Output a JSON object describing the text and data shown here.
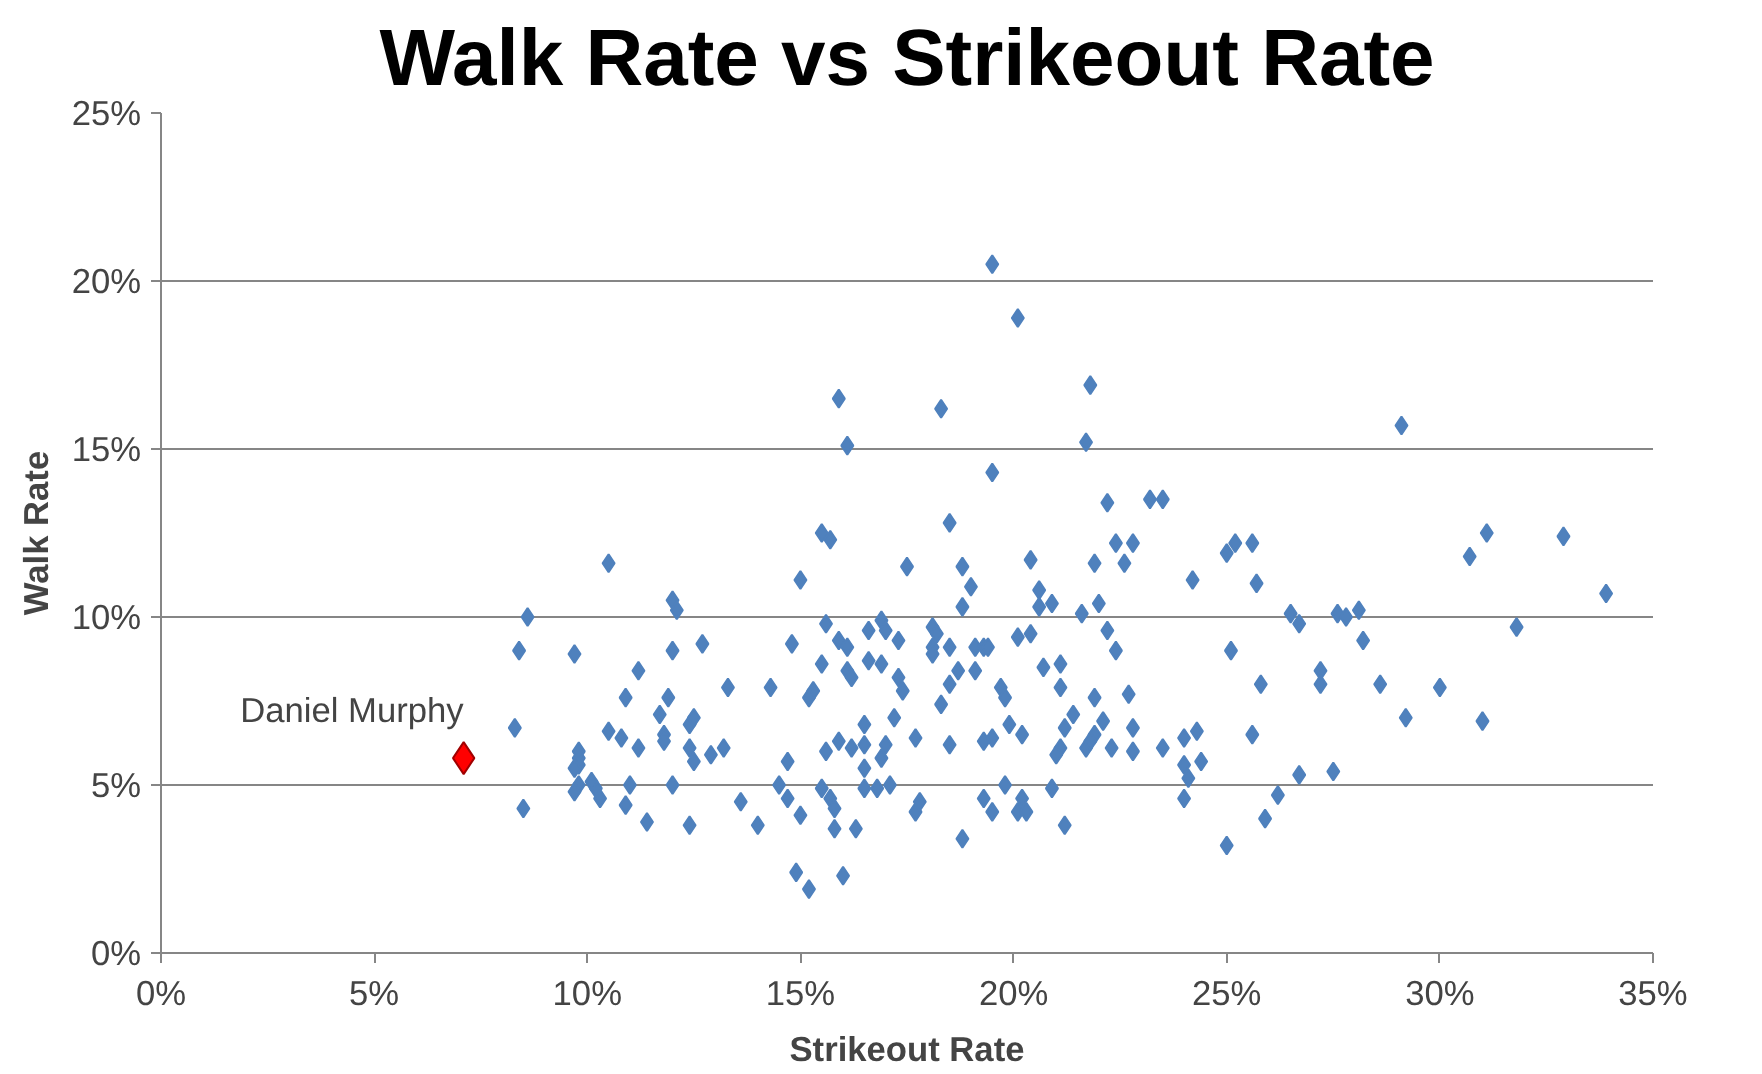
{
  "chart_data": {
    "type": "scatter",
    "title": "Walk Rate vs Strikeout Rate",
    "xlabel": "Strikeout Rate",
    "ylabel": "Walk Rate",
    "xlim": [
      0,
      35
    ],
    "ylim": [
      0,
      25
    ],
    "xticks": [
      {
        "value": 0,
        "label": "0%"
      },
      {
        "value": 5,
        "label": "5%"
      },
      {
        "value": 10,
        "label": "10%"
      },
      {
        "value": 15,
        "label": "15%"
      },
      {
        "value": 20,
        "label": "20%"
      },
      {
        "value": 25,
        "label": "25%"
      },
      {
        "value": 30,
        "label": "30%"
      },
      {
        "value": 35,
        "label": "35%"
      }
    ],
    "yticks": [
      {
        "value": 0,
        "label": "0%"
      },
      {
        "value": 5,
        "label": "5%"
      },
      {
        "value": 10,
        "label": "10%"
      },
      {
        "value": 15,
        "label": "15%"
      },
      {
        "value": 20,
        "label": "20%"
      },
      {
        "value": 25,
        "label": "25%"
      }
    ],
    "grid": "y",
    "legend": false,
    "marker": "diamond",
    "series": [
      {
        "color": "#4f81bd",
        "x": [
          8.3,
          8.4,
          8.6,
          8.5,
          9.7,
          9.8,
          9.8,
          9.8,
          10.5,
          10.2,
          15.9,
          16.1,
          15.5,
          15.7,
          15.0,
          12.0,
          12.1,
          12.0,
          12.7,
          11.2,
          10.9,
          11.9,
          13.3,
          14.3,
          14.8,
          15.6,
          15.5,
          15.9,
          16.1,
          16.1,
          16.2,
          15.3,
          15.2,
          10.5,
          10.8,
          11.7,
          11.8,
          12.4,
          12.5,
          9.8,
          9.7,
          11.2,
          11.8,
          12.4,
          12.5,
          12.9,
          13.2,
          14.7,
          10.1,
          9.7,
          10.3,
          11.0,
          10.9,
          12.0,
          11.4,
          12.4,
          13.6,
          14.0,
          14.5,
          14.7,
          15.0,
          15.5,
          15.7,
          15.8,
          15.8,
          16.3,
          14.9,
          15.2,
          16.0,
          15.6,
          15.9,
          16.2,
          19.5,
          20.1,
          18.3,
          21.8,
          21.7,
          19.5,
          18.5,
          22.2,
          23.2,
          23.5,
          22.4,
          22.8,
          22.6,
          21.9,
          20.4,
          17.5,
          18.8,
          19.0,
          20.6,
          20.6,
          20.9,
          22.0,
          18.8,
          21.6,
          24.2,
          18.1,
          18.2,
          18.5,
          18.1,
          18.1,
          19.1,
          19.3,
          19.4,
          20.1,
          20.4,
          22.2,
          22.4,
          16.6,
          16.9,
          17.0,
          17.3,
          16.6,
          16.9,
          18.7,
          18.5,
          19.1,
          17.3,
          17.4,
          19.7,
          19.8,
          20.7,
          21.1,
          21.1,
          21.9,
          22.7,
          18.3,
          17.2,
          17.7,
          16.5,
          19.9,
          20.2,
          21.4,
          21.2,
          21.1,
          21.0,
          22.1,
          21.9,
          22.8,
          22.8,
          22.3,
          21.7,
          21.8,
          19.5,
          19.3,
          18.5,
          17.0,
          16.9,
          16.5,
          16.5,
          23.5,
          24.0,
          24.3,
          24.0,
          24.1,
          24.4,
          24.0,
          16.5,
          16.8,
          17.1,
          17.7,
          17.8,
          19.3,
          19.5,
          19.8,
          20.1,
          20.3,
          20.2,
          20.9,
          21.2,
          18.8,
          29.1,
          25.0,
          25.2,
          25.6,
          25.7,
          30.7,
          31.1,
          32.9,
          33.9,
          26.5,
          26.7,
          27.6,
          27.8,
          28.1,
          28.2,
          31.8,
          25.1,
          25.8,
          27.2,
          27.2,
          28.6,
          30.0,
          29.2,
          31.0,
          25.6,
          26.2,
          26.7,
          27.5,
          25.9,
          25.0
        ],
        "values": [
          6.7,
          9.0,
          10.0,
          4.3,
          8.9,
          5.8,
          5.6,
          5.0,
          11.6,
          4.9,
          16.5,
          15.1,
          12.5,
          12.3,
          11.1,
          10.5,
          10.2,
          9.0,
          9.2,
          8.4,
          7.6,
          7.6,
          7.9,
          7.9,
          9.2,
          9.8,
          8.6,
          9.3,
          9.1,
          8.4,
          8.2,
          7.8,
          7.6,
          6.6,
          6.4,
          7.1,
          6.5,
          6.8,
          7.0,
          6.0,
          5.5,
          6.1,
          6.3,
          6.1,
          5.7,
          5.9,
          6.1,
          5.7,
          5.1,
          4.8,
          4.6,
          5.0,
          4.4,
          5.0,
          3.9,
          3.8,
          4.5,
          3.8,
          5.0,
          4.6,
          4.1,
          4.9,
          4.6,
          4.3,
          3.7,
          3.7,
          2.4,
          1.9,
          2.3,
          6.0,
          6.3,
          6.1,
          20.5,
          18.9,
          16.2,
          16.9,
          15.2,
          14.3,
          12.8,
          13.4,
          13.5,
          13.5,
          12.2,
          12.2,
          11.6,
          11.6,
          11.7,
          11.5,
          11.5,
          10.9,
          10.8,
          10.3,
          10.4,
          10.4,
          10.3,
          10.1,
          11.1,
          9.7,
          9.5,
          9.1,
          9.1,
          8.9,
          9.1,
          9.1,
          9.1,
          9.4,
          9.5,
          9.6,
          9.0,
          9.6,
          9.9,
          9.6,
          9.3,
          8.7,
          8.6,
          8.4,
          8.0,
          8.4,
          8.2,
          7.8,
          7.9,
          7.6,
          8.5,
          8.6,
          7.9,
          7.6,
          7.7,
          7.4,
          7.0,
          6.4,
          6.8,
          6.8,
          6.5,
          7.1,
          6.7,
          6.1,
          5.9,
          6.9,
          6.5,
          6.7,
          6.0,
          6.1,
          6.1,
          6.3,
          6.4,
          6.3,
          6.2,
          6.2,
          5.8,
          6.2,
          5.5,
          6.1,
          6.4,
          6.6,
          5.6,
          5.2,
          5.7,
          4.6,
          4.9,
          4.9,
          5.0,
          4.2,
          4.5,
          4.6,
          4.2,
          5.0,
          4.2,
          4.2,
          4.6,
          4.9,
          3.8,
          3.4,
          15.7,
          11.9,
          12.2,
          12.2,
          11.0,
          11.8,
          12.5,
          12.4,
          10.7,
          10.1,
          9.8,
          10.1,
          10.0,
          10.2,
          9.3,
          9.7,
          9.0,
          8.0,
          8.4,
          8.0,
          8.0,
          7.9,
          7.0,
          6.9,
          6.5,
          4.7,
          5.3,
          5.4,
          4.0,
          3.2
        ]
      },
      {
        "name": "Daniel Murphy",
        "color": "#ff0000",
        "x": [
          7.1
        ],
        "values": [
          5.8
        ]
      }
    ]
  }
}
